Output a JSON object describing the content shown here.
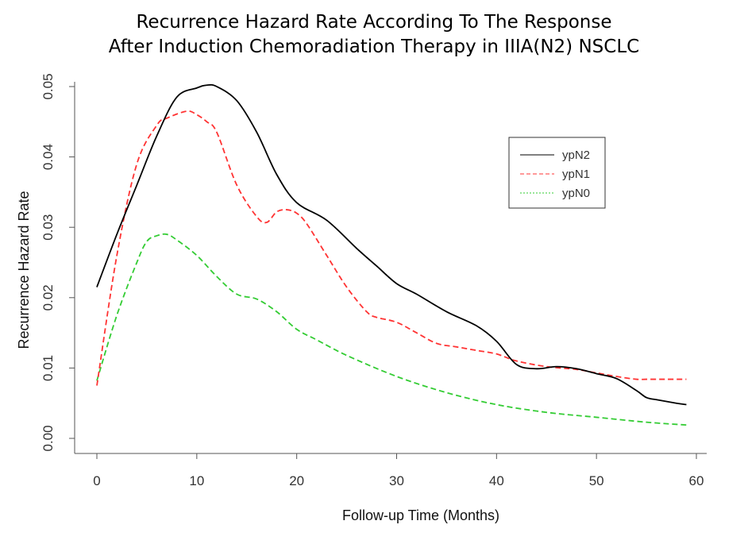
{
  "chart_data": {
    "type": "line",
    "title_lines": [
      "Recurrence Hazard Rate According To The Response",
      "After Induction Chemoradiation Therapy in IIIA(N2) NSCLC"
    ],
    "xlabel": "Follow-up Time (Months)",
    "ylabel": "Recurrence Hazard Rate",
    "xlim": [
      0,
      60
    ],
    "ylim": [
      0,
      0.05
    ],
    "x_ticks": [
      0,
      10,
      20,
      30,
      40,
      50,
      60
    ],
    "x_tick_labels": [
      "0",
      "10",
      "20",
      "30",
      "40",
      "50",
      "60"
    ],
    "y_ticks": [
      0,
      0.01,
      0.02,
      0.03,
      0.04,
      0.05
    ],
    "y_tick_labels": [
      "0.00",
      "0.01",
      "0.02",
      "0.03",
      "0.04",
      "0.05"
    ],
    "legend_position": "top-right",
    "grid": false,
    "series": [
      {
        "name": "ypN2",
        "color": "#000000",
        "line_style": "solid",
        "x": [
          0,
          2,
          4,
          6,
          8,
          10,
          11,
          12,
          14,
          16,
          18,
          20,
          23,
          26,
          28,
          30,
          32,
          35,
          38,
          40,
          42,
          44,
          46,
          48,
          50,
          52,
          54,
          55,
          56,
          58,
          59
        ],
        "y": [
          0.0215,
          0.029,
          0.036,
          0.043,
          0.0485,
          0.0498,
          0.0502,
          0.05,
          0.048,
          0.0435,
          0.0375,
          0.0335,
          0.031,
          0.027,
          0.0245,
          0.022,
          0.0205,
          0.018,
          0.016,
          0.0138,
          0.0105,
          0.0099,
          0.0102,
          0.0099,
          0.0092,
          0.0085,
          0.0068,
          0.0058,
          0.0055,
          0.005,
          0.0048
        ]
      },
      {
        "name": "ypN1",
        "color": "#ff3333",
        "line_style": "dashed",
        "x": [
          0,
          2,
          4,
          6,
          7,
          9,
          10,
          11,
          12,
          14,
          16,
          17,
          18,
          19,
          20,
          21,
          23,
          25,
          27,
          28,
          30,
          32,
          34,
          36,
          38,
          40,
          42,
          45,
          48,
          50,
          52,
          54,
          55,
          57,
          59
        ],
        "y": [
          0.0075,
          0.026,
          0.039,
          0.0445,
          0.0455,
          0.0465,
          0.046,
          0.045,
          0.0435,
          0.036,
          0.0315,
          0.0307,
          0.0322,
          0.0325,
          0.032,
          0.0305,
          0.026,
          0.0215,
          0.018,
          0.0172,
          0.0165,
          0.015,
          0.0135,
          0.013,
          0.0125,
          0.012,
          0.011,
          0.0102,
          0.0098,
          0.0093,
          0.0088,
          0.0084,
          0.0084,
          0.0084,
          0.0084
        ]
      },
      {
        "name": "ypN0",
        "color": "#33cc33",
        "line_style": "dashed",
        "x": [
          0,
          2,
          4,
          5,
          6,
          7,
          8,
          10,
          12,
          14,
          16,
          18,
          20,
          22,
          25,
          30,
          35,
          40,
          45,
          50,
          55,
          59
        ],
        "y": [
          0.0082,
          0.0175,
          0.025,
          0.028,
          0.0288,
          0.029,
          0.0282,
          0.026,
          0.023,
          0.0205,
          0.0198,
          0.018,
          0.0155,
          0.014,
          0.0118,
          0.0088,
          0.0065,
          0.0048,
          0.0037,
          0.003,
          0.0023,
          0.0019
        ]
      }
    ]
  }
}
